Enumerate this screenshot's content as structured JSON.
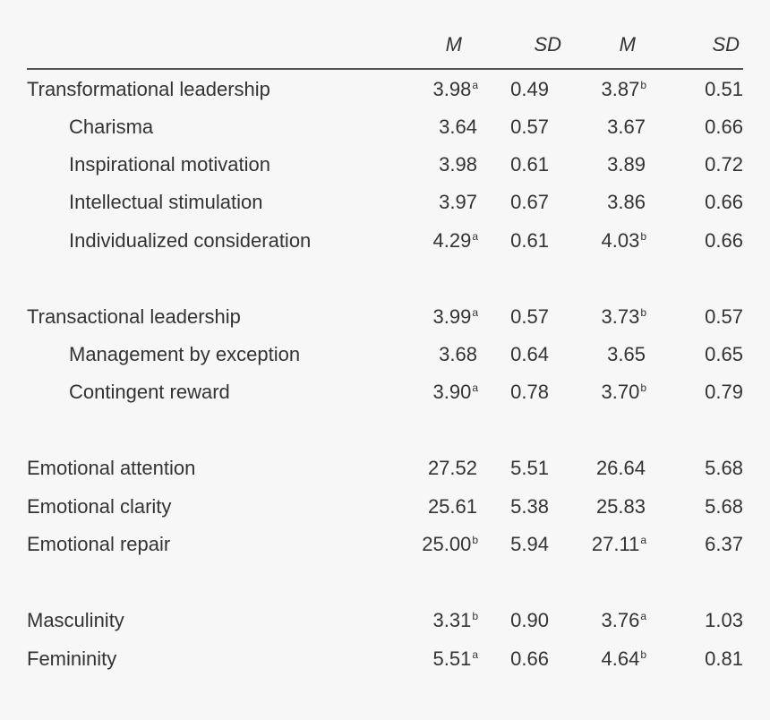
{
  "header": {
    "m1": "M",
    "sd1": "SD",
    "m2": "M",
    "sd2": "SD"
  },
  "rows": [
    {
      "label": "Transformational leadership",
      "m1": "3.98",
      "m1_sup": "a",
      "sd1": "0.49",
      "m2": "3.87",
      "m2_sup": "b",
      "sd2": "0.51"
    },
    {
      "label": "Charisma",
      "m1": "3.64",
      "m1_sup": "",
      "sd1": "0.57",
      "m2": "3.67",
      "m2_sup": "",
      "sd2": "0.66"
    },
    {
      "label": "Inspirational motivation",
      "m1": "3.98",
      "m1_sup": "",
      "sd1": "0.61",
      "m2": "3.89",
      "m2_sup": "",
      "sd2": "0.72"
    },
    {
      "label": "Intellectual stimulation",
      "m1": "3.97",
      "m1_sup": "",
      "sd1": "0.67",
      "m2": "3.86",
      "m2_sup": "",
      "sd2": "0.66"
    },
    {
      "label": "Individualized consideration",
      "m1": "4.29",
      "m1_sup": "a",
      "sd1": "0.61",
      "m2": "4.03",
      "m2_sup": "b",
      "sd2": "0.66"
    },
    {
      "label": "Transactional leadership",
      "m1": "3.99",
      "m1_sup": "a",
      "sd1": "0.57",
      "m2": "3.73",
      "m2_sup": "b",
      "sd2": "0.57"
    },
    {
      "label": "Management by exception",
      "m1": "3.68",
      "m1_sup": "",
      "sd1": "0.64",
      "m2": "3.65",
      "m2_sup": "",
      "sd2": "0.65"
    },
    {
      "label": "Contingent reward",
      "m1": "3.90",
      "m1_sup": "a",
      "sd1": "0.78",
      "m2": "3.70",
      "m2_sup": "b",
      "sd2": "0.79"
    },
    {
      "label": "Emotional attention",
      "m1": "27.52",
      "m1_sup": "",
      "sd1": "5.51",
      "m2": "26.64",
      "m2_sup": "",
      "sd2": "5.68"
    },
    {
      "label": "Emotional clarity",
      "m1": "25.61",
      "m1_sup": "",
      "sd1": "5.38",
      "m2": "25.83",
      "m2_sup": "",
      "sd2": "5.68"
    },
    {
      "label": "Emotional repair",
      "m1": "25.00",
      "m1_sup": "b",
      "sd1": "5.94",
      "m2": "27.11",
      "m2_sup": "a",
      "sd2": "6.37"
    },
    {
      "label": "Masculinity",
      "m1": "3.31",
      "m1_sup": "b",
      "sd1": "0.90",
      "m2": "3.76",
      "m2_sup": "a",
      "sd2": "1.03"
    },
    {
      "label": "Femininity",
      "m1": "5.51",
      "m1_sup": "a",
      "sd1": "0.66",
      "m2": "4.64",
      "m2_sup": "b",
      "sd2": "0.81"
    }
  ]
}
